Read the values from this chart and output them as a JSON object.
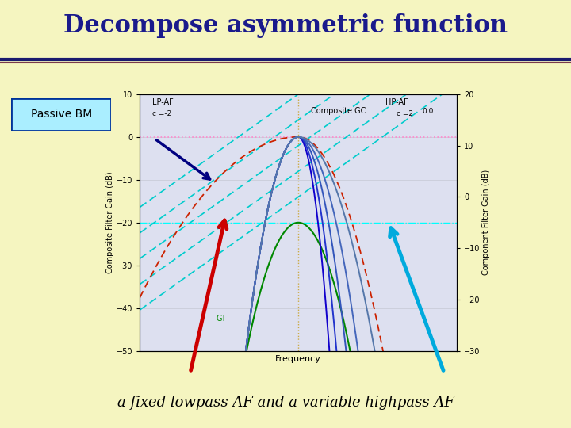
{
  "title": "Decompose asymmetric function",
  "subtitle": "a fixed lowpass AF and a variable highpass AF",
  "passive_bm_label": "Passive BM",
  "bg_color": "#f5f5c0",
  "title_color": "#1a1a8c",
  "title_fontsize": 22,
  "plot_bg_color": "#dde0f0",
  "lp_label": "LP-AF",
  "lp_c_label": "c =-2",
  "hp_label": "HP-AF",
  "hp_c_label": "c =2",
  "composite_label": "Composite GC",
  "gt_label": "GT",
  "freq_label": "Frequency",
  "yleft_label": "Composite Filter Gain (dB)",
  "yright_label": "Component Filter Gain (dB)",
  "yleft_range": [
    -50,
    10
  ],
  "yright_range": [
    -30,
    20
  ],
  "subtitle_color": "#000000",
  "subtitle_fontsize": 13,
  "box_color": "#aaeeff",
  "box_edge_color": "#003399",
  "separator_color1": "#1a1a6e",
  "separator_color2": "#7a3a4a"
}
